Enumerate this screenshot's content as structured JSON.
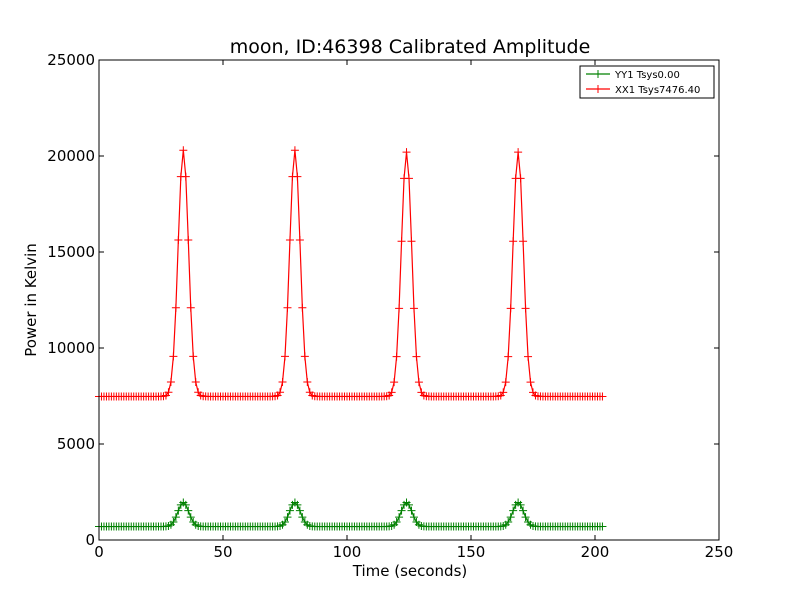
{
  "chart_data": {
    "type": "line",
    "title": "moon, ID:46398 Calibrated Amplitude",
    "xlabel": "Time (seconds)",
    "ylabel": "Power in Kelvin",
    "xlim": [
      0,
      250
    ],
    "ylim": [
      0,
      25000
    ],
    "xticks": [
      0,
      50,
      100,
      150,
      200,
      250
    ],
    "yticks": [
      0,
      5000,
      10000,
      15000,
      20000,
      25000
    ],
    "grid": false,
    "legend_position": "top-right",
    "marker": "+",
    "sample_step_seconds": 1,
    "x_range": [
      0,
      203
    ],
    "series": [
      {
        "name": "YY1 Tsys0.00",
        "color": "#008000",
        "baseline": 700,
        "peak_centers": [
          34,
          79,
          124,
          169
        ],
        "peak_values": [
          1950,
          1950,
          1950,
          1950
        ],
        "peak_sigma_seconds": 2.2
      },
      {
        "name": "XX1 Tsys7476.40",
        "color": "#ff0000",
        "baseline": 7476.4,
        "peak_centers": [
          34,
          79,
          124,
          169
        ],
        "peak_values": [
          20300,
          20300,
          20200,
          20200
        ],
        "peak_sigma_seconds": 2.1
      }
    ]
  }
}
